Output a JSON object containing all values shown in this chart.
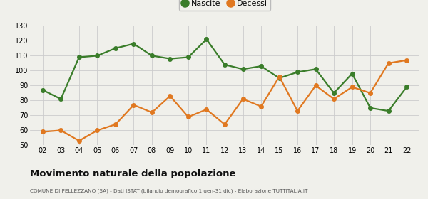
{
  "years": [
    2,
    3,
    4,
    5,
    6,
    7,
    8,
    9,
    10,
    11,
    12,
    13,
    14,
    15,
    16,
    17,
    18,
    19,
    20,
    21,
    22
  ],
  "nascite": [
    87,
    81,
    109,
    110,
    115,
    118,
    110,
    108,
    109,
    121,
    104,
    101,
    103,
    95,
    99,
    101,
    85,
    98,
    75,
    73,
    89
  ],
  "decessi": [
    59,
    60,
    53,
    60,
    64,
    77,
    72,
    83,
    69,
    74,
    64,
    81,
    76,
    96,
    73,
    90,
    81,
    89,
    85,
    105,
    107
  ],
  "nascite_color": "#3a7d2a",
  "decessi_color": "#e07820",
  "background_color": "#f0f0eb",
  "grid_color": "#cccccc",
  "ylim": [
    50,
    130
  ],
  "yticks": [
    50,
    60,
    70,
    80,
    90,
    100,
    110,
    120,
    130
  ],
  "title": "Movimento naturale della popolazione",
  "subtitle": "COMUNE DI PELLEZZANO (SA) - Dati ISTAT (bilancio demografico 1 gen-31 dic) - Elaborazione TUTTITALIA.IT",
  "legend_nascite": "Nascite",
  "legend_decessi": "Decessi",
  "marker_size": 4,
  "line_width": 1.6
}
